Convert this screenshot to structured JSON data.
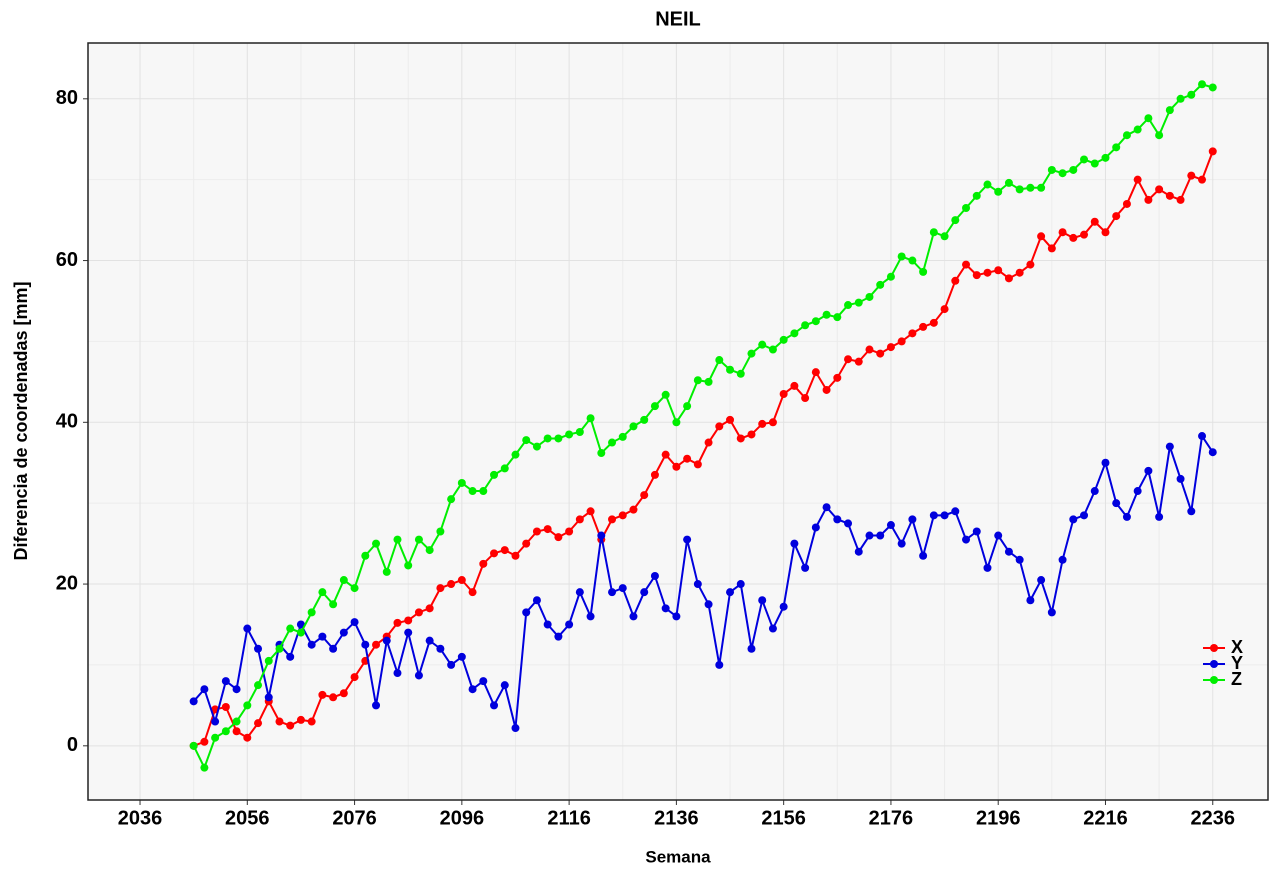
{
  "chart_data": {
    "type": "line",
    "title": "NEIL",
    "xlabel": "Semana",
    "ylabel": "Diferencia de coordenadas [mm]",
    "x": [
      2046,
      2048,
      2050,
      2052,
      2054,
      2056,
      2058,
      2060,
      2062,
      2064,
      2066,
      2068,
      2070,
      2072,
      2074,
      2076,
      2078,
      2080,
      2082,
      2084,
      2086,
      2088,
      2090,
      2092,
      2094,
      2096,
      2098,
      2100,
      2102,
      2104,
      2106,
      2108,
      2110,
      2112,
      2114,
      2116,
      2118,
      2120,
      2122,
      2124,
      2126,
      2128,
      2130,
      2132,
      2134,
      2136,
      2138,
      2140,
      2142,
      2144,
      2146,
      2148,
      2150,
      2152,
      2154,
      2156,
      2158,
      2160,
      2162,
      2164,
      2166,
      2168,
      2170,
      2172,
      2174,
      2176,
      2178,
      2180,
      2182,
      2184,
      2186,
      2188,
      2190,
      2192,
      2194,
      2196,
      2198,
      2200,
      2202,
      2204,
      2206,
      2208,
      2210,
      2212,
      2214,
      2216,
      2218,
      2220,
      2222,
      2224,
      2226,
      2228,
      2230,
      2232,
      2234,
      2236
    ],
    "series": [
      {
        "name": "X",
        "color": "#ff0000",
        "values": [
          0,
          0.5,
          4.5,
          4.8,
          1.8,
          1.0,
          2.8,
          5.5,
          3.0,
          2.5,
          3.2,
          3.0,
          6.3,
          6.0,
          6.5,
          8.5,
          10.5,
          12.5,
          13.5,
          15.2,
          15.5,
          16.5,
          17.0,
          19.5,
          20.0,
          20.5,
          19.0,
          22.5,
          23.8,
          24.2,
          23.5,
          25.0,
          26.5,
          26.8,
          25.8,
          26.5,
          28.0,
          29.0,
          25.5,
          28.0,
          28.5,
          29.2,
          31.0,
          33.5,
          36.0,
          34.5,
          35.5,
          34.8,
          37.5,
          39.5,
          40.3,
          38.0,
          38.5,
          39.8,
          40.0,
          43.5,
          44.5,
          43.0,
          46.2,
          44.0,
          45.5,
          47.8,
          47.5,
          49.0,
          48.5,
          49.3,
          50.0,
          51.0,
          51.8,
          52.3,
          54.0,
          57.5,
          59.5,
          58.2,
          58.5,
          58.8,
          57.8,
          58.5,
          59.5,
          63.0,
          61.5,
          63.5,
          62.8,
          63.2,
          64.8,
          63.5,
          65.5,
          67.0,
          70.0,
          67.5,
          68.8,
          68.0,
          67.5,
          70.5,
          70.0,
          73.5
        ]
      },
      {
        "name": "Y",
        "color": "#0000dd",
        "values": [
          5.5,
          7.0,
          3.0,
          8.0,
          7.0,
          14.5,
          12.0,
          6.0,
          12.5,
          11.0,
          15.0,
          12.5,
          13.5,
          12.0,
          14.0,
          15.3,
          12.5,
          5.0,
          13.0,
          9.0,
          14.0,
          8.7,
          13.0,
          12.0,
          10.0,
          11.0,
          7.0,
          8.0,
          5.0,
          7.5,
          2.2,
          16.5,
          18.0,
          15.0,
          13.5,
          15.0,
          19.0,
          16.0,
          26.0,
          19.0,
          19.5,
          16.0,
          19.0,
          21.0,
          17.0,
          16.0,
          25.5,
          20.0,
          17.5,
          10.0,
          19.0,
          20.0,
          12.0,
          18.0,
          14.5,
          17.2,
          25.0,
          22.0,
          27.0,
          29.5,
          28.0,
          27.5,
          24.0,
          26.0,
          26.0,
          27.3,
          25.0,
          28.0,
          23.5,
          28.5,
          28.5,
          29.0,
          25.5,
          26.5,
          22.0,
          26.0,
          24.0,
          23.0,
          18.0,
          20.5,
          16.5,
          23.0,
          28.0,
          28.5,
          31.5,
          35.0,
          30.0,
          28.3,
          31.5,
          34.0,
          28.3,
          37.0,
          33.0,
          29.0,
          38.3,
          36.3
        ]
      },
      {
        "name": "Z",
        "color": "#00ee00",
        "values": [
          0,
          -2.7,
          1.0,
          1.8,
          3.0,
          5.0,
          7.5,
          10.5,
          12.0,
          14.5,
          14.0,
          16.5,
          19.0,
          17.5,
          20.5,
          19.5,
          23.5,
          25.0,
          21.5,
          25.5,
          22.3,
          25.5,
          24.2,
          26.5,
          30.5,
          32.5,
          31.5,
          31.5,
          33.5,
          34.3,
          36.0,
          37.8,
          37.0,
          38.0,
          38.0,
          38.5,
          38.8,
          40.5,
          36.2,
          37.5,
          38.2,
          39.5,
          40.3,
          42.0,
          43.4,
          40.0,
          42.0,
          45.2,
          45.0,
          47.7,
          46.5,
          46.0,
          48.5,
          49.6,
          49.0,
          50.2,
          51.0,
          52.0,
          52.5,
          53.3,
          53.0,
          54.5,
          54.8,
          55.5,
          57.0,
          58.0,
          60.5,
          60.0,
          58.6,
          63.5,
          63.0,
          65.0,
          66.5,
          68.0,
          69.4,
          68.5,
          69.6,
          68.8,
          69.0,
          69.0,
          71.2,
          70.8,
          71.2,
          72.5,
          72.0,
          72.7,
          74.0,
          75.5,
          76.2,
          77.6,
          75.5,
          78.6,
          80.0,
          80.5,
          81.8,
          81.4
        ]
      }
    ],
    "xlim": [
      2026.3,
      2246.3
    ],
    "ylim": [
      -6.7,
      86.9
    ],
    "xticks": [
      2036,
      2056,
      2076,
      2096,
      2116,
      2136,
      2156,
      2176,
      2196,
      2216,
      2236
    ],
    "yticks": [
      0,
      20,
      40,
      60,
      80
    ],
    "grid": true,
    "legend": "right"
  }
}
